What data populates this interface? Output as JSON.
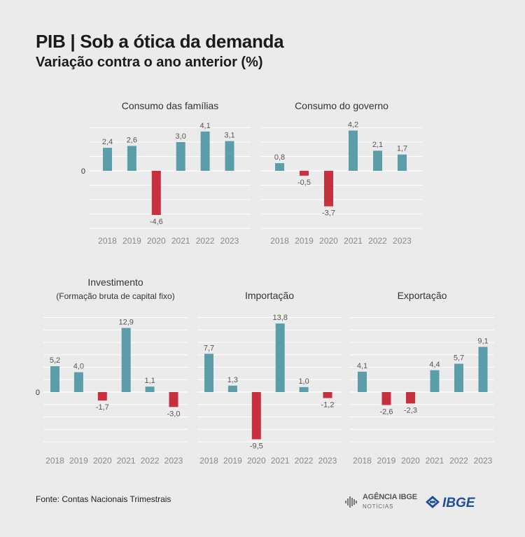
{
  "header": {
    "title": "PIB | Sob a ótica da demanda",
    "subtitle": "Variação contra o ano anterior (%)"
  },
  "footer": {
    "source": "Fonte: Contas Nacionais Trimestrais",
    "agencia_title": "AGÊNCIA IBGE",
    "agencia_sub": "NOTÍCIAS",
    "ibge_logo_text": "IBGE"
  },
  "colors": {
    "positive": "#5b9eaa",
    "negative": "#c8303f",
    "grid": "#ffffff",
    "text": "#333333",
    "tick": "#888888",
    "background": "#ebebeb"
  },
  "chart_data": [
    {
      "type": "bar",
      "title": "Consumo das famílias",
      "categories": [
        "2018",
        "2019",
        "2020",
        "2021",
        "2022",
        "2023"
      ],
      "values": [
        2.4,
        2.6,
        -4.6,
        3.0,
        4.1,
        3.1
      ],
      "labels": [
        "2,4",
        "2,6",
        "-4,6",
        "3,0",
        "4,1",
        "3,1"
      ],
      "zero_label": "0"
    },
    {
      "type": "bar",
      "title": "Consumo do governo",
      "categories": [
        "2018",
        "2019",
        "2020",
        "2021",
        "2022",
        "2023"
      ],
      "values": [
        0.8,
        -0.5,
        -3.7,
        4.2,
        2.1,
        1.7
      ],
      "labels": [
        "0,8",
        "-0,5",
        "-3,7",
        "4,2",
        "2,1",
        "1,7"
      ]
    },
    {
      "type": "bar",
      "title": "Investimento",
      "subtitle": "(Formação bruta de capital fixo)",
      "categories": [
        "2018",
        "2019",
        "2020",
        "2021",
        "2022",
        "2023"
      ],
      "values": [
        5.2,
        4.0,
        -1.7,
        12.9,
        1.1,
        -3.0
      ],
      "labels": [
        "5,2",
        "4,0",
        "-1,7",
        "12,9",
        "1,1",
        "-3,0"
      ],
      "zero_label": "0"
    },
    {
      "type": "bar",
      "title": "Importação",
      "categories": [
        "2018",
        "2019",
        "2020",
        "2021",
        "2022",
        "2023"
      ],
      "values": [
        7.7,
        1.3,
        -9.5,
        13.8,
        1.0,
        -1.2
      ],
      "labels": [
        "7,7",
        "1,3",
        "-9,5",
        "13,8",
        "1,0",
        "-1,2"
      ]
    },
    {
      "type": "bar",
      "title": "Exportação",
      "categories": [
        "2018",
        "2019",
        "2020",
        "2021",
        "2022",
        "2023"
      ],
      "values": [
        4.1,
        -2.6,
        -2.3,
        4.4,
        5.7,
        9.1
      ],
      "labels": [
        "4,1",
        "-2,6",
        "-2,3",
        "4,4",
        "5,7",
        "9,1"
      ]
    }
  ]
}
